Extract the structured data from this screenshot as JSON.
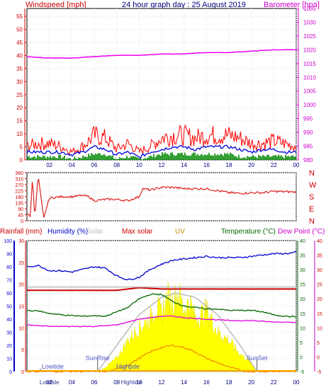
{
  "charts": {
    "top": {
      "title": "24 hour graph day : 25 August 2019",
      "left_label": "Windspeed [mph]",
      "right_label": "Barometer [hpa]",
      "left_ticks": [
        "0",
        "5",
        "10",
        "15",
        "20",
        "25",
        "30",
        "35",
        "40",
        "45",
        "50",
        "55"
      ],
      "right_ticks": [
        "980",
        "985",
        "990",
        "995",
        "1000",
        "1005",
        "1010",
        "1015",
        "1020",
        "1025",
        "1030",
        "1035"
      ],
      "x_ticks": [
        "02",
        "04",
        "06",
        "08",
        "10",
        "12",
        "14",
        "16",
        "18",
        "20",
        "22",
        "00"
      ],
      "colors": {
        "left_label": "#cc0000",
        "right_label": "#cc00cc",
        "title": "#000080"
      }
    },
    "middle": {
      "left_ticks": [
        "0",
        "45",
        "90",
        "135",
        "180",
        "225",
        "270",
        "315",
        "360"
      ],
      "right_ticks": [
        "N",
        "W",
        "S",
        "E",
        "N"
      ],
      "colors": {
        "labels": "#cc0000"
      }
    },
    "bottom": {
      "labels": [
        {
          "text": "Rainfall (mm)",
          "color": "#cc0000"
        },
        {
          "text": "Humidity (%)",
          "color": "#0000cc"
        },
        {
          "text": "Solar",
          "color": "#bbbbbb"
        },
        {
          "text": "Max solar",
          "color": "#cc0000"
        },
        {
          "text": "UV",
          "color": "#cc8800"
        },
        {
          "text": "Temperature (°C)",
          "color": "#006600"
        },
        {
          "text": "Dew Point (°C)",
          "color": "#cc00cc"
        }
      ],
      "humidity_ticks": [
        "0",
        "10",
        "20",
        "30",
        "40",
        "50",
        "60",
        "70",
        "80",
        "90",
        "100"
      ],
      "rain_ticks": [
        "0",
        "5",
        "10",
        "15",
        "20",
        "25",
        "30"
      ],
      "temp_ticks": [
        "-5",
        "0",
        "5",
        "10",
        "15",
        "20",
        "25",
        "30",
        "35",
        "40"
      ],
      "annotations": [
        "SunRise",
        "SunSet",
        "Lowtide",
        "Hightide"
      ],
      "x_ticks": [
        "02",
        "04",
        "06",
        "08",
        "10",
        "12",
        "14",
        "16",
        "18",
        "20",
        "22",
        "00"
      ],
      "x_tick_overlays": [
        "Lowtide",
        "Hightide"
      ]
    }
  },
  "chart_data": [
    {
      "type": "line",
      "title": "24 hour graph day : 25 August 2019",
      "x_hours": [
        0,
        24
      ],
      "ylabel": "Windspeed [mph]",
      "ylim": [
        0,
        58
      ],
      "y2label": "Barometer [hpa]",
      "y2lim": [
        980,
        1035
      ],
      "series": [
        {
          "name": "Windspeed [mph]",
          "axis": "left",
          "color": "#ff0000",
          "style": "spiky",
          "x": [
            0,
            1,
            2,
            3,
            4,
            5,
            6,
            7,
            8,
            9,
            10,
            11,
            12,
            13,
            14,
            15,
            16,
            17,
            18,
            19,
            20,
            21,
            22,
            23,
            24
          ],
          "y": [
            5,
            6,
            6,
            5,
            3,
            5,
            9,
            8,
            4,
            6,
            3,
            5,
            8,
            9,
            9,
            8,
            9,
            9,
            9,
            8,
            6,
            6,
            7,
            6,
            5
          ]
        },
        {
          "name": "Wind average",
          "axis": "left",
          "color": "#0000dd",
          "x": [
            0,
            1,
            2,
            3,
            4,
            5,
            6,
            7,
            8,
            9,
            10,
            11,
            12,
            13,
            14,
            15,
            16,
            17,
            18,
            19,
            20,
            21,
            22,
            23,
            24
          ],
          "y": [
            3,
            3,
            3,
            3,
            2,
            3,
            5,
            4,
            2,
            3,
            1,
            3,
            4,
            5,
            5,
            4,
            5,
            5,
            5,
            4,
            3,
            4,
            4,
            3,
            3
          ]
        },
        {
          "name": "Wind direction bars",
          "axis": "left",
          "color": "#008800",
          "style": "bars",
          "x": [
            0,
            1,
            2,
            3,
            4,
            5,
            6,
            7,
            8,
            9,
            10,
            11,
            12,
            13,
            14,
            15,
            16,
            17,
            18,
            19,
            20,
            21,
            22,
            23,
            24
          ],
          "y": [
            1,
            1,
            1,
            1,
            0,
            1,
            2,
            2,
            0,
            1,
            0,
            1,
            2,
            2,
            2,
            2,
            2,
            2,
            2,
            1,
            1,
            1,
            1,
            1,
            1
          ]
        },
        {
          "name": "Barometer [hpa]",
          "axis": "right",
          "color": "#ee00ee",
          "x": [
            0,
            2,
            4,
            6,
            8,
            10,
            12,
            14,
            16,
            18,
            20,
            22,
            24
          ],
          "y": [
            1017.5,
            1017,
            1017,
            1017.5,
            1018,
            1018,
            1018.5,
            1018.5,
            1019,
            1019,
            1019.5,
            1020,
            1020
          ]
        }
      ]
    },
    {
      "type": "line",
      "ylim": [
        0,
        360
      ],
      "ylabel": "",
      "series": [
        {
          "name": "Wind direction",
          "color": "#dd2222",
          "style": "noisy",
          "x": [
            0,
            0.3,
            0.5,
            0.7,
            1.0,
            1.5,
            2.0,
            3.0,
            4.0,
            5.0,
            5.5,
            6.0,
            7.0,
            8.0,
            9.0,
            10.0,
            10.3,
            11.0,
            12.0,
            13.0,
            14.0,
            16.0,
            18.0,
            19.0,
            20.0,
            21.0,
            22.0,
            24.0
          ],
          "y": [
            60,
            30,
            330,
            15,
            340,
            20,
            170,
            180,
            180,
            190,
            180,
            150,
            160,
            160,
            150,
            180,
            240,
            230,
            250,
            250,
            240,
            240,
            210,
            205,
            210,
            210,
            220,
            215
          ]
        }
      ]
    },
    {
      "type": "area",
      "x_hours": [
        0,
        24
      ],
      "y_humidity_lim": [
        0,
        100
      ],
      "y_rain_lim": [
        0,
        30
      ],
      "y_temp_lim": [
        -5,
        40
      ],
      "series": [
        {
          "name": "Humidity (%)",
          "axis": "humidity",
          "color": "#0000cc",
          "x": [
            0,
            1,
            2,
            3,
            4,
            5,
            6,
            7,
            8,
            9,
            10,
            11,
            12,
            13,
            14,
            15,
            16,
            17,
            18,
            19,
            20,
            21,
            22,
            23,
            24
          ],
          "y": [
            80,
            81,
            77,
            77,
            76,
            78,
            80,
            79,
            73,
            70,
            72,
            78,
            82,
            85,
            86,
            87,
            88,
            87,
            87,
            87,
            88,
            89,
            90,
            90,
            91
          ]
        },
        {
          "name": "Max solar",
          "axis": "humidity",
          "color": "#cc0000",
          "x": [
            0,
            6,
            8,
            10,
            12,
            24
          ],
          "y": [
            62,
            62,
            62,
            64,
            63,
            63
          ]
        },
        {
          "name": "Temperature (°C)",
          "axis": "temp",
          "color": "#006600",
          "x": [
            0,
            1,
            2,
            3,
            4,
            5,
            6,
            7,
            8,
            9,
            10,
            11,
            12,
            13,
            14,
            15,
            16,
            17,
            18,
            19,
            20,
            21,
            22,
            23,
            24
          ],
          "y": [
            16,
            15.8,
            15,
            14.5,
            14.2,
            14,
            14.2,
            14,
            15.5,
            17,
            20,
            21.5,
            21.5,
            19,
            17.5,
            17,
            16.5,
            16.5,
            16,
            16,
            16,
            15.5,
            14.5,
            14,
            13.8
          ]
        },
        {
          "name": "Dew Point (°C)",
          "axis": "temp",
          "color": "#dd00dd",
          "x": [
            0,
            2,
            4,
            6,
            8,
            9,
            10,
            11,
            12,
            13,
            14,
            16,
            18,
            20,
            22,
            24
          ],
          "y": [
            11,
            10.5,
            10.5,
            10.5,
            11,
            12,
            13,
            13.5,
            14,
            14,
            13.5,
            13,
            12.5,
            12.5,
            12,
            12
          ]
        },
        {
          "name": "Solar",
          "axis": "rain",
          "color": "#ffff00",
          "style": "filled-area",
          "x": [
            0,
            6.5,
            7,
            8,
            9,
            10,
            11,
            11.5,
            12,
            12.5,
            13,
            13.5,
            14,
            14.5,
            15,
            16,
            17,
            18,
            19,
            20,
            20.5,
            24
          ],
          "y": [
            0,
            0,
            1,
            3,
            7,
            10,
            12,
            15,
            13,
            17,
            16,
            18,
            14,
            16,
            12,
            14,
            9,
            7,
            4,
            2,
            0,
            0
          ]
        },
        {
          "name": "Max solar curve",
          "axis": "rain",
          "color": "#bbbbbb",
          "x": [
            0,
            6.3,
            8,
            10,
            12,
            13.3,
            15,
            17,
            19,
            20.5,
            24
          ],
          "y": [
            0,
            0,
            6,
            13,
            17,
            18,
            17,
            13,
            6,
            0,
            0
          ]
        },
        {
          "name": "UV",
          "axis": "rain",
          "color": "#ee8800",
          "x": [
            0,
            7,
            8,
            9,
            10,
            11,
            12,
            13,
            14,
            15,
            16,
            17,
            18,
            19,
            19.5,
            24
          ],
          "y": [
            0,
            0,
            0.5,
            1.5,
            3,
            4.5,
            5.5,
            6,
            5.5,
            4.5,
            3,
            2,
            1,
            0.3,
            0,
            0
          ]
        }
      ]
    }
  ]
}
